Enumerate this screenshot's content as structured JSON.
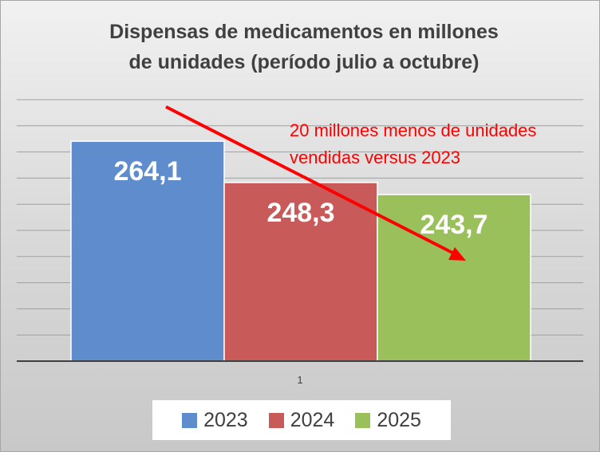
{
  "chart_data": {
    "type": "bar",
    "title_lines": [
      "Dispensas de medicamentos en millones",
      "de unidades (período julio a octubre)"
    ],
    "categories": [
      "1"
    ],
    "series": [
      {
        "name": "2023",
        "values": [
          264.1
        ],
        "label": "264,1",
        "color": "#5f8ccc"
      },
      {
        "name": "2024",
        "values": [
          248.3
        ],
        "label": "248,3",
        "color": "#c85a5a"
      },
      {
        "name": "2025",
        "values": [
          243.7
        ],
        "label": "243,7",
        "color": "#9ac05c"
      }
    ],
    "annotation": [
      "20 millones menos de unidades",
      "vendidas versus 2023"
    ],
    "annotation_color": "#ff0000",
    "ylim": [
      180,
      280
    ],
    "grid": true,
    "legend_position": "bottom"
  }
}
